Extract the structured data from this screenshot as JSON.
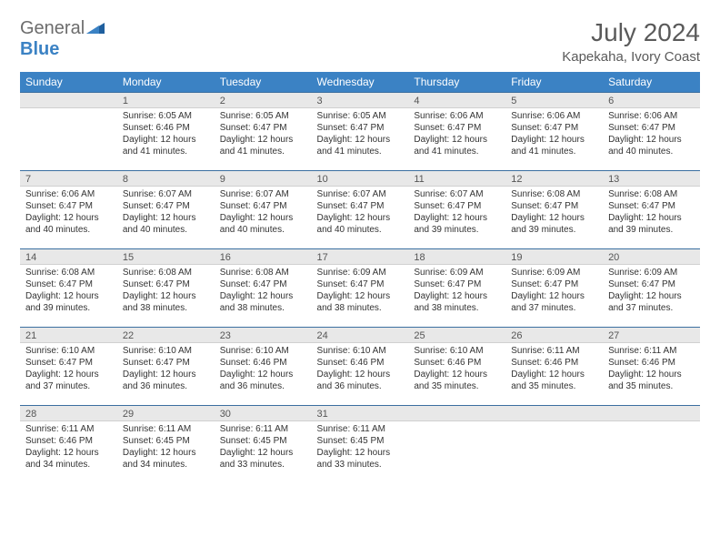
{
  "brand": {
    "part1": "General",
    "part2": "Blue"
  },
  "title": "July 2024",
  "location": "Kapekaha, Ivory Coast",
  "weekdays": [
    "Sunday",
    "Monday",
    "Tuesday",
    "Wednesday",
    "Thursday",
    "Friday",
    "Saturday"
  ],
  "colors": {
    "header_bg": "#3b82c4",
    "header_text": "#ffffff",
    "daybar_bg": "#e8e8e8",
    "daybar_border_top": "#3b6fa0",
    "text": "#333333",
    "muted": "#5a5a5a"
  },
  "typography": {
    "month_title_pt": 21,
    "location_pt": 11,
    "weekday_pt": 9,
    "daynum_pt": 8,
    "body_pt": 7.5
  },
  "first_weekday_index": 1,
  "days": [
    {
      "n": 1,
      "sunrise": "6:05 AM",
      "sunset": "6:46 PM",
      "dl_h": 12,
      "dl_m": 41
    },
    {
      "n": 2,
      "sunrise": "6:05 AM",
      "sunset": "6:47 PM",
      "dl_h": 12,
      "dl_m": 41
    },
    {
      "n": 3,
      "sunrise": "6:05 AM",
      "sunset": "6:47 PM",
      "dl_h": 12,
      "dl_m": 41
    },
    {
      "n": 4,
      "sunrise": "6:06 AM",
      "sunset": "6:47 PM",
      "dl_h": 12,
      "dl_m": 41
    },
    {
      "n": 5,
      "sunrise": "6:06 AM",
      "sunset": "6:47 PM",
      "dl_h": 12,
      "dl_m": 41
    },
    {
      "n": 6,
      "sunrise": "6:06 AM",
      "sunset": "6:47 PM",
      "dl_h": 12,
      "dl_m": 40
    },
    {
      "n": 7,
      "sunrise": "6:06 AM",
      "sunset": "6:47 PM",
      "dl_h": 12,
      "dl_m": 40
    },
    {
      "n": 8,
      "sunrise": "6:07 AM",
      "sunset": "6:47 PM",
      "dl_h": 12,
      "dl_m": 40
    },
    {
      "n": 9,
      "sunrise": "6:07 AM",
      "sunset": "6:47 PM",
      "dl_h": 12,
      "dl_m": 40
    },
    {
      "n": 10,
      "sunrise": "6:07 AM",
      "sunset": "6:47 PM",
      "dl_h": 12,
      "dl_m": 40
    },
    {
      "n": 11,
      "sunrise": "6:07 AM",
      "sunset": "6:47 PM",
      "dl_h": 12,
      "dl_m": 39
    },
    {
      "n": 12,
      "sunrise": "6:08 AM",
      "sunset": "6:47 PM",
      "dl_h": 12,
      "dl_m": 39
    },
    {
      "n": 13,
      "sunrise": "6:08 AM",
      "sunset": "6:47 PM",
      "dl_h": 12,
      "dl_m": 39
    },
    {
      "n": 14,
      "sunrise": "6:08 AM",
      "sunset": "6:47 PM",
      "dl_h": 12,
      "dl_m": 39
    },
    {
      "n": 15,
      "sunrise": "6:08 AM",
      "sunset": "6:47 PM",
      "dl_h": 12,
      "dl_m": 38
    },
    {
      "n": 16,
      "sunrise": "6:08 AM",
      "sunset": "6:47 PM",
      "dl_h": 12,
      "dl_m": 38
    },
    {
      "n": 17,
      "sunrise": "6:09 AM",
      "sunset": "6:47 PM",
      "dl_h": 12,
      "dl_m": 38
    },
    {
      "n": 18,
      "sunrise": "6:09 AM",
      "sunset": "6:47 PM",
      "dl_h": 12,
      "dl_m": 38
    },
    {
      "n": 19,
      "sunrise": "6:09 AM",
      "sunset": "6:47 PM",
      "dl_h": 12,
      "dl_m": 37
    },
    {
      "n": 20,
      "sunrise": "6:09 AM",
      "sunset": "6:47 PM",
      "dl_h": 12,
      "dl_m": 37
    },
    {
      "n": 21,
      "sunrise": "6:10 AM",
      "sunset": "6:47 PM",
      "dl_h": 12,
      "dl_m": 37
    },
    {
      "n": 22,
      "sunrise": "6:10 AM",
      "sunset": "6:47 PM",
      "dl_h": 12,
      "dl_m": 36
    },
    {
      "n": 23,
      "sunrise": "6:10 AM",
      "sunset": "6:46 PM",
      "dl_h": 12,
      "dl_m": 36
    },
    {
      "n": 24,
      "sunrise": "6:10 AM",
      "sunset": "6:46 PM",
      "dl_h": 12,
      "dl_m": 36
    },
    {
      "n": 25,
      "sunrise": "6:10 AM",
      "sunset": "6:46 PM",
      "dl_h": 12,
      "dl_m": 35
    },
    {
      "n": 26,
      "sunrise": "6:11 AM",
      "sunset": "6:46 PM",
      "dl_h": 12,
      "dl_m": 35
    },
    {
      "n": 27,
      "sunrise": "6:11 AM",
      "sunset": "6:46 PM",
      "dl_h": 12,
      "dl_m": 35
    },
    {
      "n": 28,
      "sunrise": "6:11 AM",
      "sunset": "6:46 PM",
      "dl_h": 12,
      "dl_m": 34
    },
    {
      "n": 29,
      "sunrise": "6:11 AM",
      "sunset": "6:45 PM",
      "dl_h": 12,
      "dl_m": 34
    },
    {
      "n": 30,
      "sunrise": "6:11 AM",
      "sunset": "6:45 PM",
      "dl_h": 12,
      "dl_m": 33
    },
    {
      "n": 31,
      "sunrise": "6:11 AM",
      "sunset": "6:45 PM",
      "dl_h": 12,
      "dl_m": 33
    }
  ],
  "labels": {
    "sunrise_prefix": "Sunrise: ",
    "sunset_prefix": "Sunset: ",
    "daylight_prefix": "Daylight: ",
    "hours_word": " hours",
    "and_word": "and ",
    "minutes_word": " minutes."
  }
}
